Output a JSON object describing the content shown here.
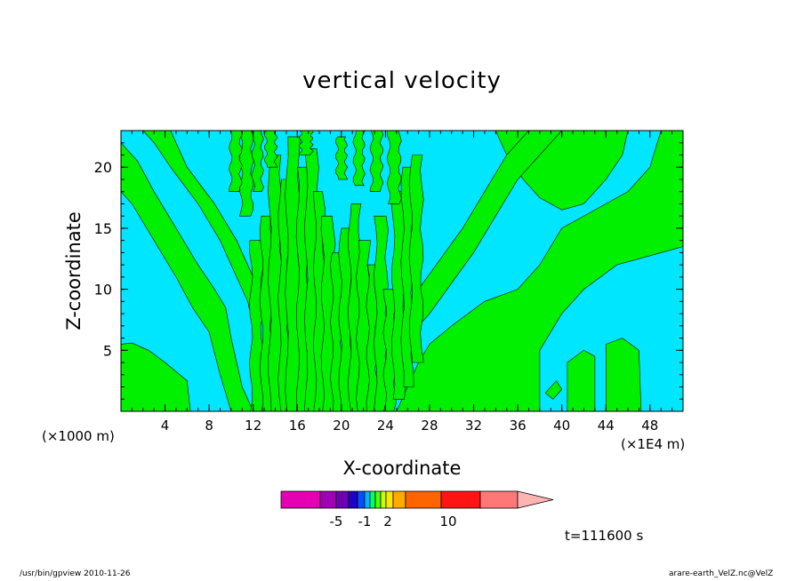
{
  "chart_data": {
    "type": "heatmap",
    "title": "vertical velocity",
    "xlabel": "X-coordinate",
    "ylabel": "Z-coordinate",
    "x_unit_label": "(×1000 m)",
    "x_unit_label2": "(×1E4 m)",
    "xlim": [
      0,
      51
    ],
    "ylim": [
      0,
      23
    ],
    "x_ticks": [
      4,
      8,
      12,
      16,
      20,
      24,
      28,
      32,
      36,
      40,
      44,
      48
    ],
    "y_ticks": [
      5,
      10,
      15,
      20
    ],
    "colorbar": {
      "colors": [
        "#e600b4",
        "#a000b4",
        "#6e00b4",
        "#1e00c8",
        "#0050ff",
        "#00b4ff",
        "#00ff64",
        "#50ff00",
        "#c8ff00",
        "#ffe600",
        "#ffaa00",
        "#ff6400",
        "#ff1414",
        "#ff7878",
        "#ffb4b4"
      ],
      "tick_labels": [
        "-5",
        "-1",
        "2",
        "10"
      ]
    },
    "contour_colors": {
      "negative": "#00e6ff",
      "positive": "#00f000"
    },
    "time_label": "t=111600 s"
  },
  "footer": {
    "left": "/usr/bin/gpview   2010-11-26",
    "right": "arare-earth_VelZ.nc@VelZ"
  }
}
